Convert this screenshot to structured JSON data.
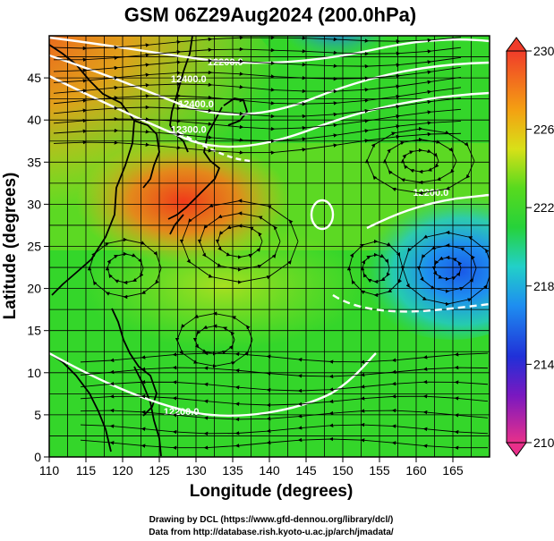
{
  "title": "GSM 06Z29Aug2024 (200.0hPa)",
  "xlabel": "Longitude (degrees)",
  "ylabel": "Latitude  (degrees)",
  "x_ticks": [
    "110",
    "115",
    "120",
    "125",
    "130",
    "135",
    "140",
    "145",
    "150",
    "155",
    "160",
    "165"
  ],
  "x_tick_values": [
    110,
    115,
    120,
    125,
    130,
    135,
    140,
    145,
    150,
    155,
    160,
    165
  ],
  "y_ticks": [
    "0",
    "5",
    "10",
    "15",
    "20",
    "25",
    "30",
    "35",
    "40",
    "45"
  ],
  "y_tick_values": [
    0,
    5,
    10,
    15,
    20,
    25,
    30,
    35,
    40,
    45
  ],
  "xlim": [
    110,
    170
  ],
  "ylim": [
    0,
    50
  ],
  "colorbar": {
    "labels": [
      "230",
      "226",
      "222",
      "218",
      "214",
      "210"
    ],
    "values": [
      230,
      226,
      222,
      218,
      214,
      210
    ],
    "range": [
      210,
      230
    ],
    "colors": [
      "#e8308a",
      "#3a12b0",
      "#1a5ae0",
      "#20c8e0",
      "#27d27a",
      "#34d62a",
      "#a8e21a",
      "#f4c812",
      "#f07a18",
      "#f03c2a"
    ]
  },
  "contour_labels": [
    "12200.0",
    "12400.0",
    "12400.0",
    "12300.0",
    "12200.0",
    "12200.0"
  ],
  "contour_label_positions": [
    [
      134,
      46.5
    ],
    [
      129,
      44.5
    ],
    [
      130,
      41.5
    ],
    [
      129,
      38.5
    ],
    [
      162,
      31
    ],
    [
      128,
      5
    ]
  ],
  "credits": {
    "line1": "Drawing by DCL (https://www.gfd-dennou.org/library/dcl/)",
    "line2": "Data from http://database.rish.kyoto-u.ac.jp/arch/jmadata/"
  },
  "colors": {
    "warm": "#f05a1e",
    "green": "#2ed02a",
    "blue": "#1e78e6",
    "contour": "#ffffff",
    "coast": "#000000"
  }
}
